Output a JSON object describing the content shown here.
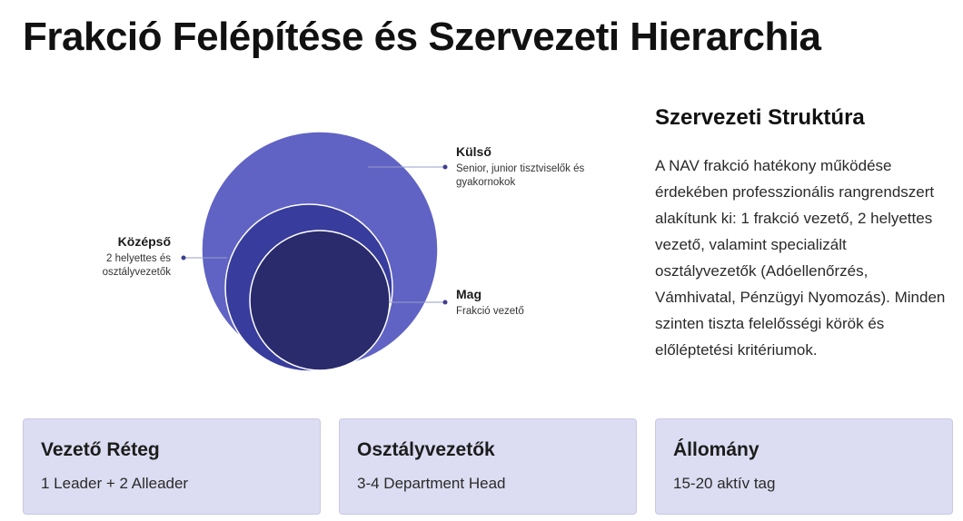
{
  "page": {
    "title": "Frakció Felépítése és Szervezeti Hierarchia"
  },
  "diagram": {
    "layers": {
      "outer": {
        "title": "Külső",
        "description": "Senior, junior tisztviselők és gyakornokok",
        "color": "#6063c4"
      },
      "middle": {
        "title": "Középső",
        "description": "2 helyettes és osztályvezetők",
        "color": "#383c9c"
      },
      "core": {
        "title": "Mag",
        "description": "Frakció vezető",
        "color": "#292b6c"
      }
    }
  },
  "side": {
    "title": "Szervezeti Struktúra",
    "text": "A NAV frakció hatékony működése érdekében professzionális rangrendszert alakítunk ki: 1 frakció vezető, 2 helyettes vezető, valamint specializált osztályvezetők (Adóellenőrzés, Vámhivatal, Pénzügyi Nyomozás). Minden szinten tiszta felelősségi körök és előléptetési kritériumok."
  },
  "cards": [
    {
      "title": "Vezető Réteg",
      "value": "1 Leader + 2 Alleader"
    },
    {
      "title": "Osztályvezetők",
      "value": "3-4 Department Head"
    },
    {
      "title": "Állomány",
      "value": "15-20 aktív tag"
    }
  ]
}
